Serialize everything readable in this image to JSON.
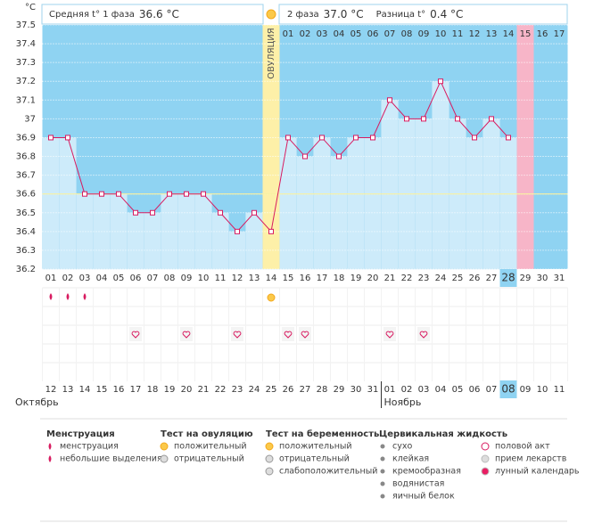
{
  "chart_data": {
    "type": "line",
    "y_unit": "°C",
    "phase1_title": "Средняя t° 1 фаза",
    "phase1_avg": "36.6 °C",
    "phase2_title": "2 фаза",
    "phase2_avg": "37.0 °C",
    "diff_title": "Разница t°",
    "diff_value": "0.4 °C",
    "ovulation_label": "ОВУЛЯЦИЯ",
    "ovulation_day": 14,
    "coverline": 36.6,
    "categories": [
      "01",
      "02",
      "03",
      "04",
      "05",
      "06",
      "07",
      "08",
      "09",
      "10",
      "11",
      "12",
      "13",
      "14",
      "15",
      "16",
      "17",
      "18",
      "19",
      "20",
      "21",
      "22",
      "23",
      "24",
      "25",
      "26",
      "27",
      "28",
      "29",
      "30",
      "31"
    ],
    "today_day": 28,
    "phase2_start_day": 15,
    "phase2_days": [
      "01",
      "02",
      "03",
      "04",
      "05",
      "06",
      "07",
      "08",
      "09",
      "10",
      "11",
      "12",
      "13",
      "14",
      "15",
      "16",
      "17"
    ],
    "phase2_highlight": 15,
    "series": [
      {
        "name": "Температура",
        "color": "#d81b60",
        "values": [
          36.9,
          36.9,
          36.6,
          36.6,
          36.6,
          36.5,
          36.5,
          36.6,
          36.6,
          36.6,
          36.5,
          36.4,
          36.5,
          36.4,
          36.9,
          36.8,
          36.9,
          36.8,
          36.9,
          36.9,
          37.1,
          37,
          37,
          37.2,
          37,
          36.9,
          37,
          36.9,
          null,
          null,
          null
        ]
      }
    ],
    "ylim": [
      36.2,
      37.5
    ],
    "yticks": [
      36.2,
      36.3,
      36.4,
      36.5,
      36.6,
      36.7,
      36.8,
      36.9,
      37,
      37.1,
      37.2,
      37.3,
      37.4,
      37.5
    ],
    "grid": true,
    "dates": [
      {
        "label": "12",
        "weekend": true
      },
      {
        "label": "13",
        "weekend": true
      },
      {
        "label": "14",
        "weekend": false
      },
      {
        "label": "15",
        "weekend": false
      },
      {
        "label": "16",
        "weekend": false
      },
      {
        "label": "17",
        "weekend": false
      },
      {
        "label": "18",
        "weekend": false
      },
      {
        "label": "19",
        "weekend": true
      },
      {
        "label": "20",
        "weekend": true
      },
      {
        "label": "21",
        "weekend": false
      },
      {
        "label": "22",
        "weekend": false
      },
      {
        "label": "23",
        "weekend": false
      },
      {
        "label": "24",
        "weekend": false
      },
      {
        "label": "25",
        "weekend": false
      },
      {
        "label": "26",
        "weekend": true
      },
      {
        "label": "27",
        "weekend": true
      },
      {
        "label": "28",
        "weekend": false
      },
      {
        "label": "29",
        "weekend": false
      },
      {
        "label": "30",
        "weekend": false
      },
      {
        "label": "31",
        "weekend": false
      },
      {
        "label": "01",
        "weekend": false
      },
      {
        "label": "02",
        "weekend": true
      },
      {
        "label": "03",
        "weekend": true
      },
      {
        "label": "04",
        "weekend": false
      },
      {
        "label": "05",
        "weekend": false
      },
      {
        "label": "06",
        "weekend": false
      },
      {
        "label": "07",
        "weekend": false
      },
      {
        "label": "08",
        "weekend": false
      },
      {
        "label": "09",
        "weekend": true
      },
      {
        "label": "10",
        "weekend": true
      },
      {
        "label": "11",
        "weekend": false
      }
    ],
    "months": [
      {
        "label": "Октябрь",
        "day": 1
      },
      {
        "label": "Ноябрь",
        "day": 21
      }
    ],
    "menstruation_days": [
      1,
      2,
      3
    ],
    "ovulation_test_days": [
      14
    ],
    "intercourse_days": [
      6,
      9,
      12,
      15,
      16,
      21,
      23
    ],
    "legend": [
      {
        "title": "Менструация",
        "items": [
          "менструация",
          "небольшие выделения"
        ]
      },
      {
        "title": "Тест на овуляцию",
        "items": [
          "положительный",
          "отрицательный"
        ]
      },
      {
        "title": "Тест на беременность",
        "items": [
          "положительный",
          "отрицательный",
          "слабоположительный"
        ]
      },
      {
        "title": "Цервикальная жидкость",
        "items": [
          "сухо",
          "клейкая",
          "кремообразная",
          "водянистая",
          "яичный белок"
        ]
      },
      {
        "title": null,
        "items": [
          "половой акт",
          "прием лекарств",
          "лунный календарь"
        ]
      }
    ]
  }
}
